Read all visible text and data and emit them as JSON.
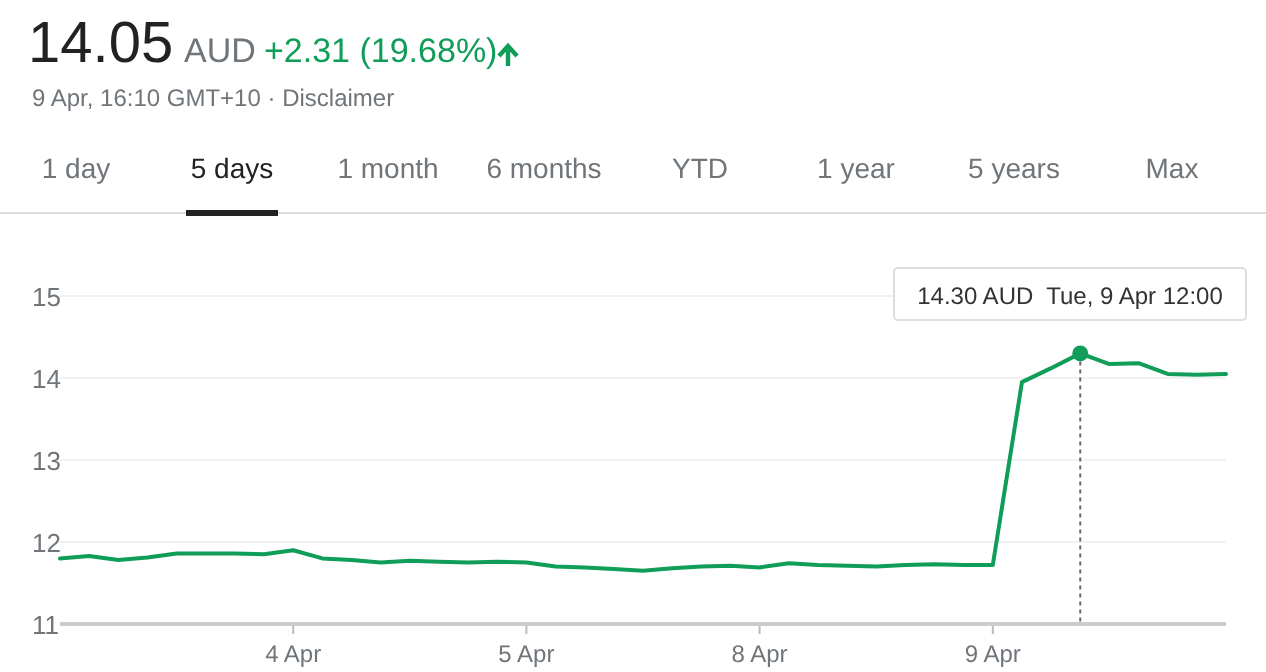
{
  "chart_data": {
    "type": "line",
    "title": "14.05",
    "subtitle": "9 Apr, 16:10 GMT+10 · Disclaimer",
    "annotations": [
      "AUD",
      "+2.31 (19.68%)",
      "1 day",
      "5 days",
      "1 month",
      "6 months",
      "YTD",
      "1 year",
      "5 years",
      "Max",
      {
        "text": "14.30 AUD  Tue, 9 Apr 12:00",
        "y": 14.3
      }
    ],
    "categories": [
      null,
      null,
      null,
      null,
      null,
      null,
      null,
      null,
      "4 Apr",
      null,
      null,
      null,
      null,
      null,
      null,
      null,
      "5 Apr",
      null,
      null,
      null,
      null,
      null,
      null,
      null,
      "8 Apr",
      null,
      null,
      null,
      null,
      null,
      null,
      null,
      "9 Apr",
      null,
      null,
      null,
      null,
      null,
      null,
      null,
      null
    ],
    "series": [
      {
        "color": "#0f9d58",
        "values": [
          11.8,
          11.83,
          11.78,
          11.81,
          11.86,
          11.86,
          11.86,
          11.85,
          11.9,
          11.8,
          11.78,
          11.75,
          11.77,
          11.76,
          11.75,
          11.76,
          11.75,
          11.7,
          11.69,
          11.67,
          11.65,
          11.68,
          11.7,
          11.71,
          11.69,
          11.74,
          11.72,
          11.71,
          11.7,
          11.72,
          11.73,
          11.72,
          11.72,
          13.95,
          14.12,
          14.3,
          14.17,
          14.18,
          14.05,
          14.04,
          14.05
        ]
      }
    ],
    "ylim": [
      11,
      15
    ],
    "yticks": [
      11,
      12,
      13,
      14,
      15
    ],
    "grid": "y",
    "line_style": "solid",
    "marker": "none"
  }
}
